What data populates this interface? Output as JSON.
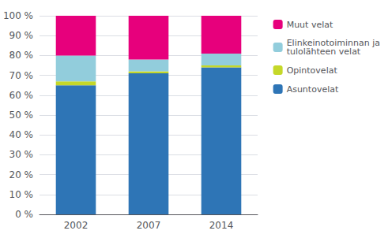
{
  "chart_data": {
    "type": "bar",
    "stacked": true,
    "categories": [
      "2002",
      "2007",
      "2014"
    ],
    "series": [
      {
        "name": "Asuntovelat",
        "color": "#2e75b6",
        "values": [
          65,
          71,
          74
        ]
      },
      {
        "name": "Opintovelat",
        "color": "#c5d829",
        "values": [
          2,
          1,
          1
        ]
      },
      {
        "name": "Elinkeinotoiminnan ja\ntulolähteen velat",
        "color": "#92cddc",
        "values": [
          13,
          6,
          6
        ]
      },
      {
        "name": "Muut velat",
        "color": "#e7007c",
        "values": [
          20,
          22,
          19
        ]
      }
    ],
    "ylim": [
      0,
      100
    ],
    "yticks": [
      {
        "value": 0,
        "label": "0 %"
      },
      {
        "value": 10,
        "label": "10 %"
      },
      {
        "value": 20,
        "label": "20 %"
      },
      {
        "value": 30,
        "label": "30 %"
      },
      {
        "value": 40,
        "label": "40 %"
      },
      {
        "value": 50,
        "label": "50 %"
      },
      {
        "value": 60,
        "label": "60 %"
      },
      {
        "value": 70,
        "label": "70 %"
      },
      {
        "value": 80,
        "label": "80 %"
      },
      {
        "value": 90,
        "label": "90 %"
      },
      {
        "value": 100,
        "label": "100 %"
      }
    ],
    "grid": true,
    "legend": "right"
  }
}
